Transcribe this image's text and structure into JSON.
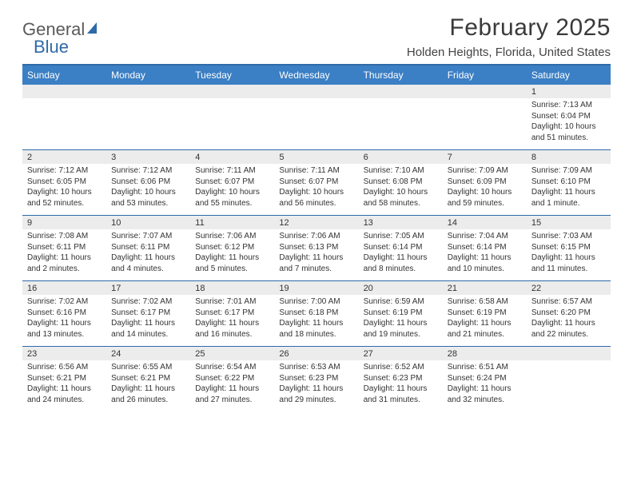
{
  "brand": {
    "part1": "General",
    "part2": "Blue"
  },
  "title": "February 2025",
  "location": "Holden Heights, Florida, United States",
  "day_headers": [
    "Sunday",
    "Monday",
    "Tuesday",
    "Wednesday",
    "Thursday",
    "Friday",
    "Saturday"
  ],
  "colors": {
    "header_bg": "#3b7fc4",
    "accent": "#2f6aa8",
    "daynum_bg": "#ececec",
    "text": "#333333",
    "background": "#ffffff"
  },
  "weeks": [
    [
      {
        "n": "",
        "sunrise": "",
        "sunset": "",
        "daylight": ""
      },
      {
        "n": "",
        "sunrise": "",
        "sunset": "",
        "daylight": ""
      },
      {
        "n": "",
        "sunrise": "",
        "sunset": "",
        "daylight": ""
      },
      {
        "n": "",
        "sunrise": "",
        "sunset": "",
        "daylight": ""
      },
      {
        "n": "",
        "sunrise": "",
        "sunset": "",
        "daylight": ""
      },
      {
        "n": "",
        "sunrise": "",
        "sunset": "",
        "daylight": ""
      },
      {
        "n": "1",
        "sunrise": "Sunrise: 7:13 AM",
        "sunset": "Sunset: 6:04 PM",
        "daylight": "Daylight: 10 hours and 51 minutes."
      }
    ],
    [
      {
        "n": "2",
        "sunrise": "Sunrise: 7:12 AM",
        "sunset": "Sunset: 6:05 PM",
        "daylight": "Daylight: 10 hours and 52 minutes."
      },
      {
        "n": "3",
        "sunrise": "Sunrise: 7:12 AM",
        "sunset": "Sunset: 6:06 PM",
        "daylight": "Daylight: 10 hours and 53 minutes."
      },
      {
        "n": "4",
        "sunrise": "Sunrise: 7:11 AM",
        "sunset": "Sunset: 6:07 PM",
        "daylight": "Daylight: 10 hours and 55 minutes."
      },
      {
        "n": "5",
        "sunrise": "Sunrise: 7:11 AM",
        "sunset": "Sunset: 6:07 PM",
        "daylight": "Daylight: 10 hours and 56 minutes."
      },
      {
        "n": "6",
        "sunrise": "Sunrise: 7:10 AM",
        "sunset": "Sunset: 6:08 PM",
        "daylight": "Daylight: 10 hours and 58 minutes."
      },
      {
        "n": "7",
        "sunrise": "Sunrise: 7:09 AM",
        "sunset": "Sunset: 6:09 PM",
        "daylight": "Daylight: 10 hours and 59 minutes."
      },
      {
        "n": "8",
        "sunrise": "Sunrise: 7:09 AM",
        "sunset": "Sunset: 6:10 PM",
        "daylight": "Daylight: 11 hours and 1 minute."
      }
    ],
    [
      {
        "n": "9",
        "sunrise": "Sunrise: 7:08 AM",
        "sunset": "Sunset: 6:11 PM",
        "daylight": "Daylight: 11 hours and 2 minutes."
      },
      {
        "n": "10",
        "sunrise": "Sunrise: 7:07 AM",
        "sunset": "Sunset: 6:11 PM",
        "daylight": "Daylight: 11 hours and 4 minutes."
      },
      {
        "n": "11",
        "sunrise": "Sunrise: 7:06 AM",
        "sunset": "Sunset: 6:12 PM",
        "daylight": "Daylight: 11 hours and 5 minutes."
      },
      {
        "n": "12",
        "sunrise": "Sunrise: 7:06 AM",
        "sunset": "Sunset: 6:13 PM",
        "daylight": "Daylight: 11 hours and 7 minutes."
      },
      {
        "n": "13",
        "sunrise": "Sunrise: 7:05 AM",
        "sunset": "Sunset: 6:14 PM",
        "daylight": "Daylight: 11 hours and 8 minutes."
      },
      {
        "n": "14",
        "sunrise": "Sunrise: 7:04 AM",
        "sunset": "Sunset: 6:14 PM",
        "daylight": "Daylight: 11 hours and 10 minutes."
      },
      {
        "n": "15",
        "sunrise": "Sunrise: 7:03 AM",
        "sunset": "Sunset: 6:15 PM",
        "daylight": "Daylight: 11 hours and 11 minutes."
      }
    ],
    [
      {
        "n": "16",
        "sunrise": "Sunrise: 7:02 AM",
        "sunset": "Sunset: 6:16 PM",
        "daylight": "Daylight: 11 hours and 13 minutes."
      },
      {
        "n": "17",
        "sunrise": "Sunrise: 7:02 AM",
        "sunset": "Sunset: 6:17 PM",
        "daylight": "Daylight: 11 hours and 14 minutes."
      },
      {
        "n": "18",
        "sunrise": "Sunrise: 7:01 AM",
        "sunset": "Sunset: 6:17 PM",
        "daylight": "Daylight: 11 hours and 16 minutes."
      },
      {
        "n": "19",
        "sunrise": "Sunrise: 7:00 AM",
        "sunset": "Sunset: 6:18 PM",
        "daylight": "Daylight: 11 hours and 18 minutes."
      },
      {
        "n": "20",
        "sunrise": "Sunrise: 6:59 AM",
        "sunset": "Sunset: 6:19 PM",
        "daylight": "Daylight: 11 hours and 19 minutes."
      },
      {
        "n": "21",
        "sunrise": "Sunrise: 6:58 AM",
        "sunset": "Sunset: 6:19 PM",
        "daylight": "Daylight: 11 hours and 21 minutes."
      },
      {
        "n": "22",
        "sunrise": "Sunrise: 6:57 AM",
        "sunset": "Sunset: 6:20 PM",
        "daylight": "Daylight: 11 hours and 22 minutes."
      }
    ],
    [
      {
        "n": "23",
        "sunrise": "Sunrise: 6:56 AM",
        "sunset": "Sunset: 6:21 PM",
        "daylight": "Daylight: 11 hours and 24 minutes."
      },
      {
        "n": "24",
        "sunrise": "Sunrise: 6:55 AM",
        "sunset": "Sunset: 6:21 PM",
        "daylight": "Daylight: 11 hours and 26 minutes."
      },
      {
        "n": "25",
        "sunrise": "Sunrise: 6:54 AM",
        "sunset": "Sunset: 6:22 PM",
        "daylight": "Daylight: 11 hours and 27 minutes."
      },
      {
        "n": "26",
        "sunrise": "Sunrise: 6:53 AM",
        "sunset": "Sunset: 6:23 PM",
        "daylight": "Daylight: 11 hours and 29 minutes."
      },
      {
        "n": "27",
        "sunrise": "Sunrise: 6:52 AM",
        "sunset": "Sunset: 6:23 PM",
        "daylight": "Daylight: 11 hours and 31 minutes."
      },
      {
        "n": "28",
        "sunrise": "Sunrise: 6:51 AM",
        "sunset": "Sunset: 6:24 PM",
        "daylight": "Daylight: 11 hours and 32 minutes."
      },
      {
        "n": "",
        "sunrise": "",
        "sunset": "",
        "daylight": ""
      }
    ]
  ]
}
